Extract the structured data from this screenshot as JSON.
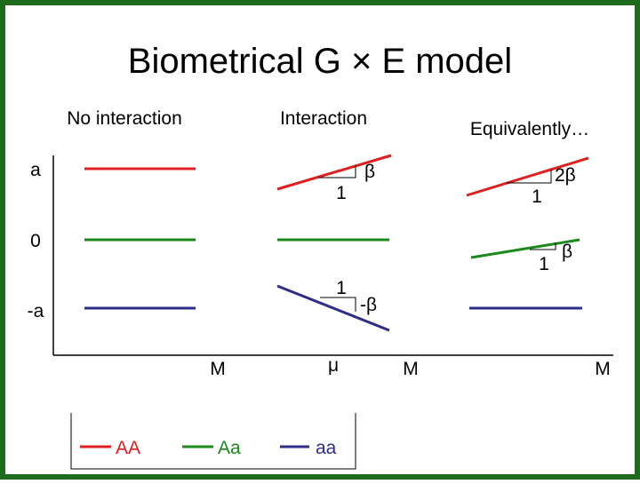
{
  "header": {
    "title": "Biometrical G × E model"
  },
  "panels": [
    {
      "label": "No interaction"
    },
    {
      "label": "Interaction"
    },
    {
      "label": "Equivalently…"
    }
  ],
  "y_labels": [
    "a",
    "0",
    "-a"
  ],
  "slope_labels": {
    "interaction_red_rise": "β",
    "interaction_red_run": "1",
    "interaction_blue_run": "1",
    "interaction_blue_rise": "-β",
    "equiv_red_rise": "2β",
    "equiv_red_run": "1",
    "equiv_green_rise": "β",
    "equiv_green_run": "1"
  },
  "x_labels": [
    "M",
    "μ",
    "M",
    "M"
  ],
  "legend": [
    "AA",
    "Aa",
    "aa"
  ]
}
